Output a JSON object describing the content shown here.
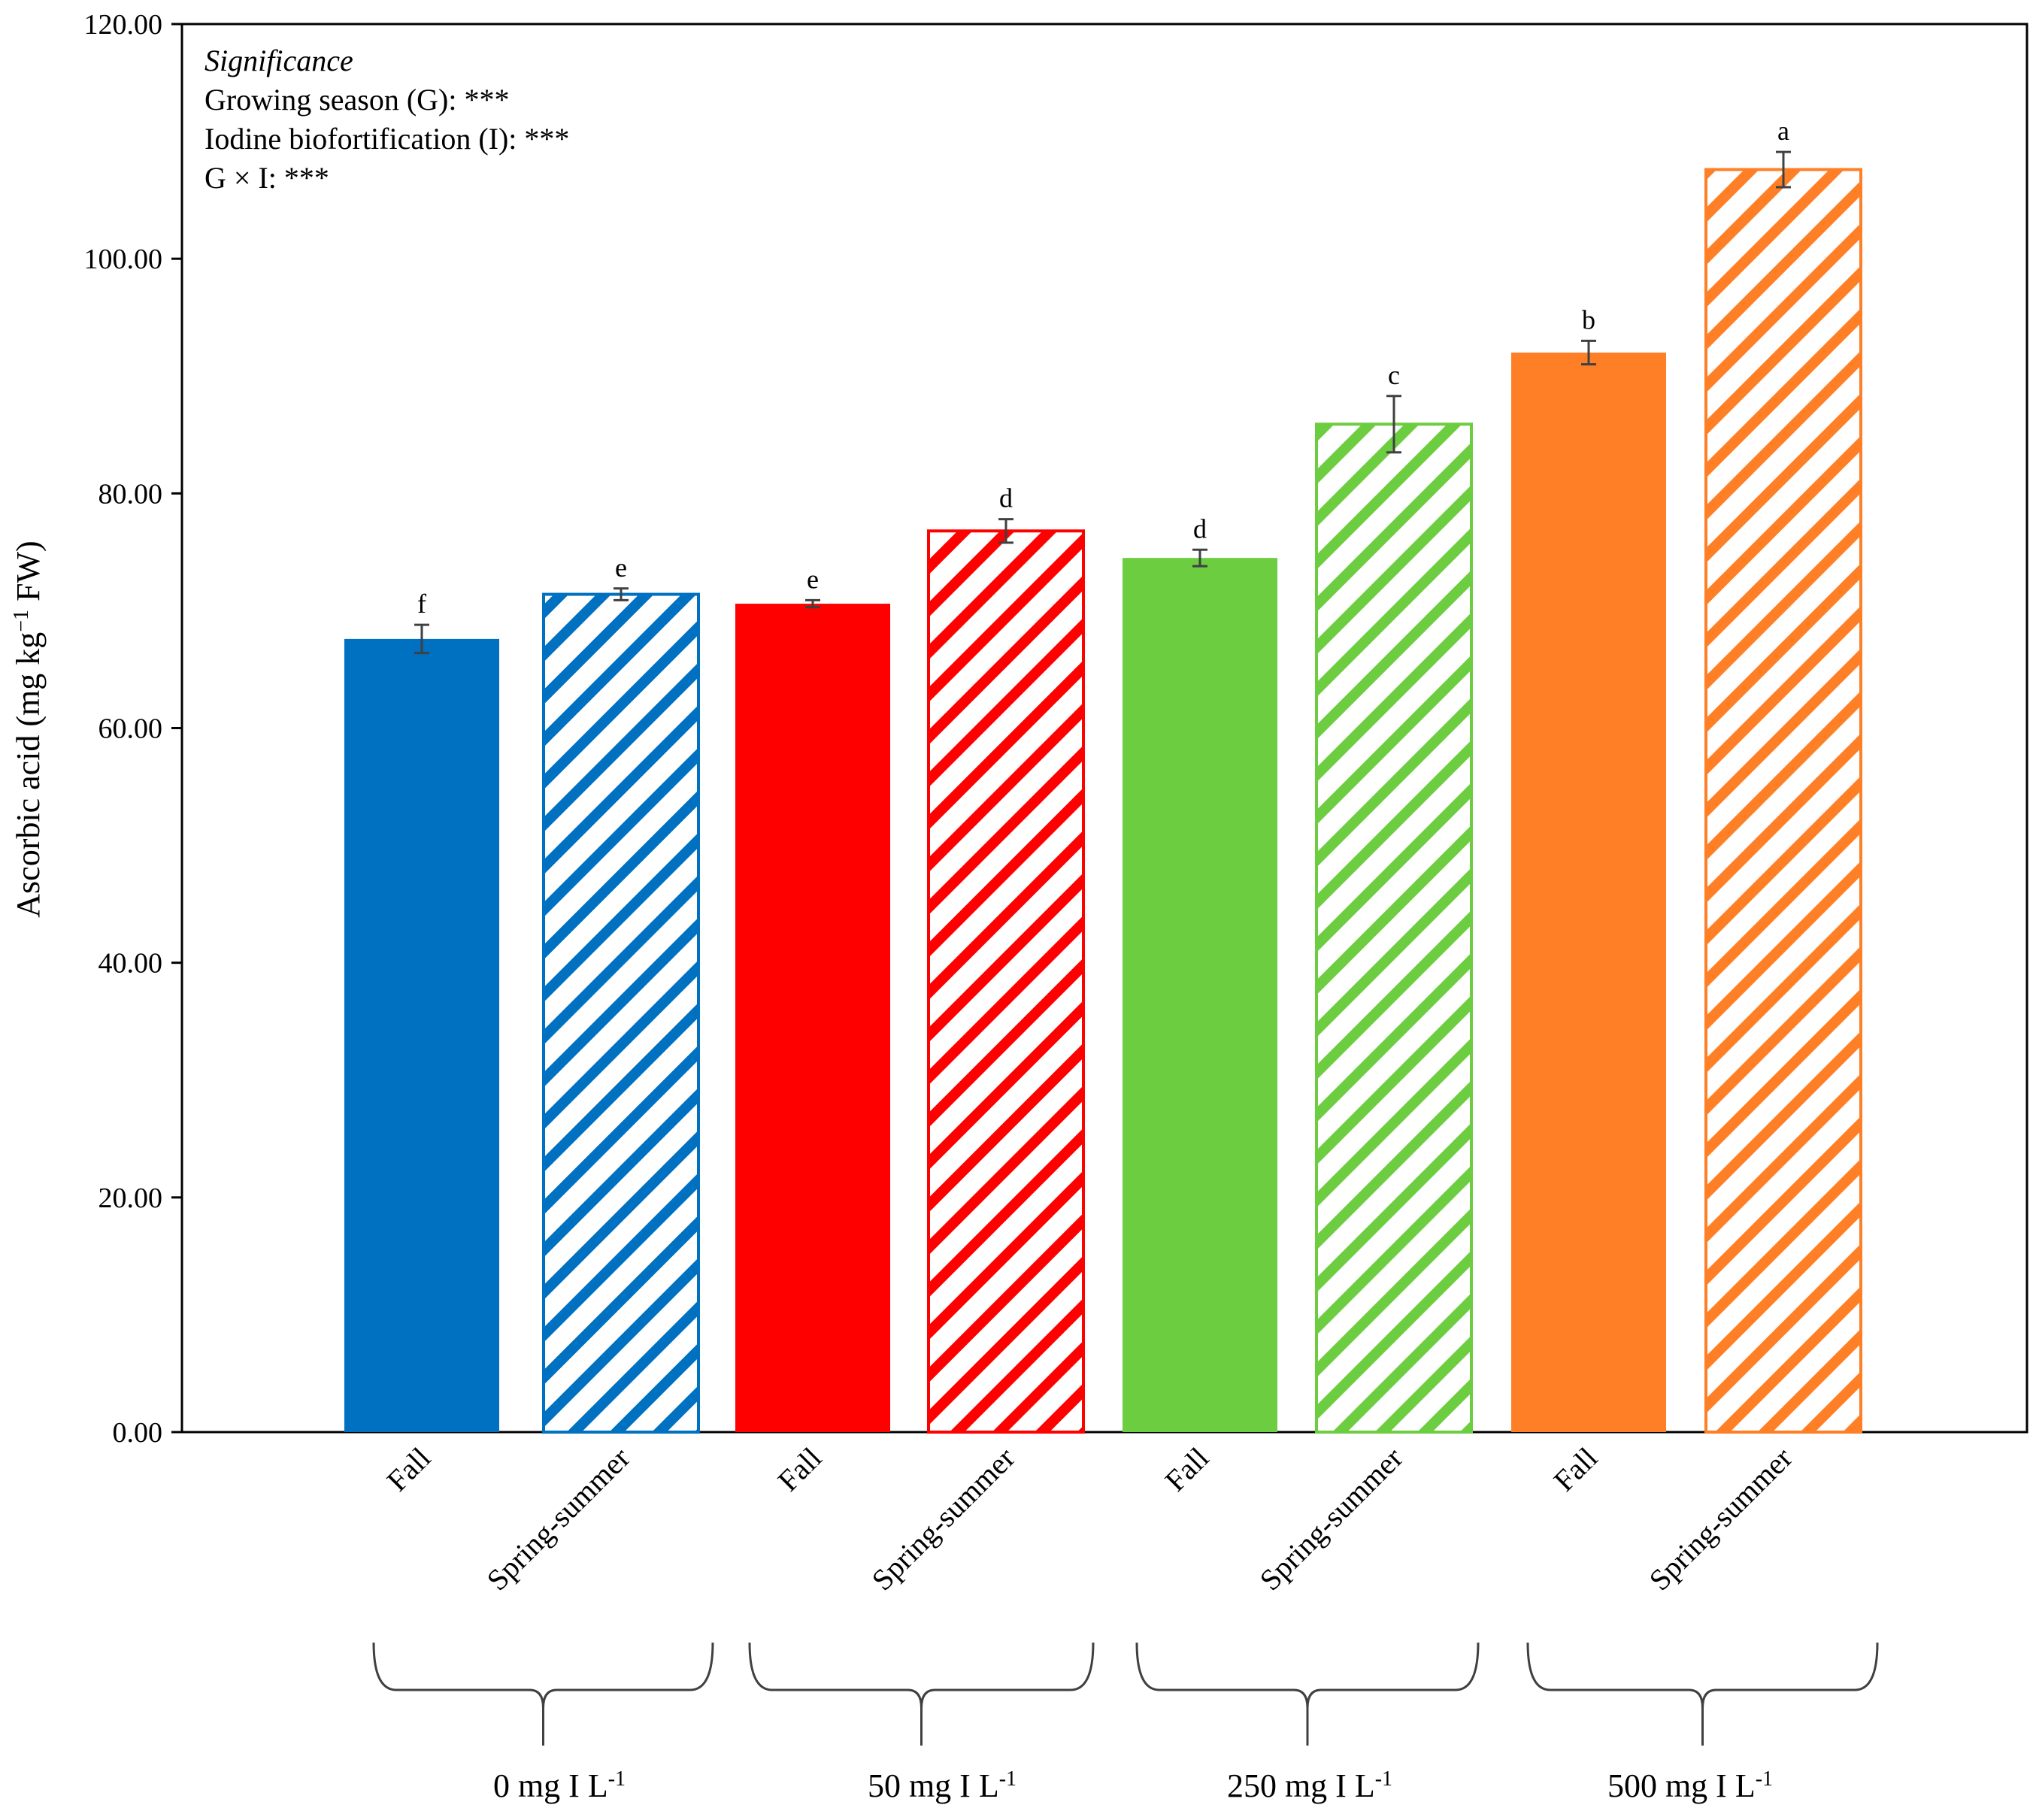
{
  "chart_data": {
    "type": "bar",
    "ylabel": "Ascorbic acid (mg kg",
    "ylabel_sup": "−1",
    "ylabel_tail": " FW)",
    "ylim": [
      0,
      120
    ],
    "yticks": [
      "0.00",
      "20.00",
      "40.00",
      "60.00",
      "80.00",
      "100.00",
      "120.00"
    ],
    "significance": {
      "title": "Significance",
      "lines": [
        "Growing season (G): ***",
        "Iodine biofortification (I): ***",
        "G × I: ***"
      ]
    },
    "groups": [
      {
        "label": "0 mg I L",
        "sup": "-1",
        "color": "#0070c0"
      },
      {
        "label": "50 mg I L",
        "sup": "-1",
        "color": "#ff0000"
      },
      {
        "label": "250 mg I L",
        "sup": "-1",
        "color": "#6dcd40"
      },
      {
        "label": "500 mg I L",
        "sup": "-1",
        "color": "#ff7f27"
      }
    ],
    "bars": [
      {
        "category": "Fall",
        "group": 0,
        "hatched": false,
        "value": 67.6,
        "error": 1.2,
        "letter": "f"
      },
      {
        "category": "Spring-summer",
        "group": 0,
        "hatched": true,
        "value": 71.4,
        "error": 0.5,
        "letter": "e"
      },
      {
        "category": "Fall",
        "group": 1,
        "hatched": false,
        "value": 70.6,
        "error": 0.3,
        "letter": "e"
      },
      {
        "category": "Spring-summer",
        "group": 1,
        "hatched": true,
        "value": 76.8,
        "error": 1.0,
        "letter": "d"
      },
      {
        "category": "Fall",
        "group": 2,
        "hatched": false,
        "value": 74.5,
        "error": 0.7,
        "letter": "d"
      },
      {
        "category": "Spring-summer",
        "group": 2,
        "hatched": true,
        "value": 85.9,
        "error": 2.4,
        "letter": "c"
      },
      {
        "category": "Fall",
        "group": 3,
        "hatched": false,
        "value": 92.0,
        "error": 1.0,
        "letter": "b"
      },
      {
        "category": "Spring-summer",
        "group": 3,
        "hatched": true,
        "value": 107.6,
        "error": 1.5,
        "letter": "a"
      }
    ],
    "legend": "none",
    "grid": false
  }
}
